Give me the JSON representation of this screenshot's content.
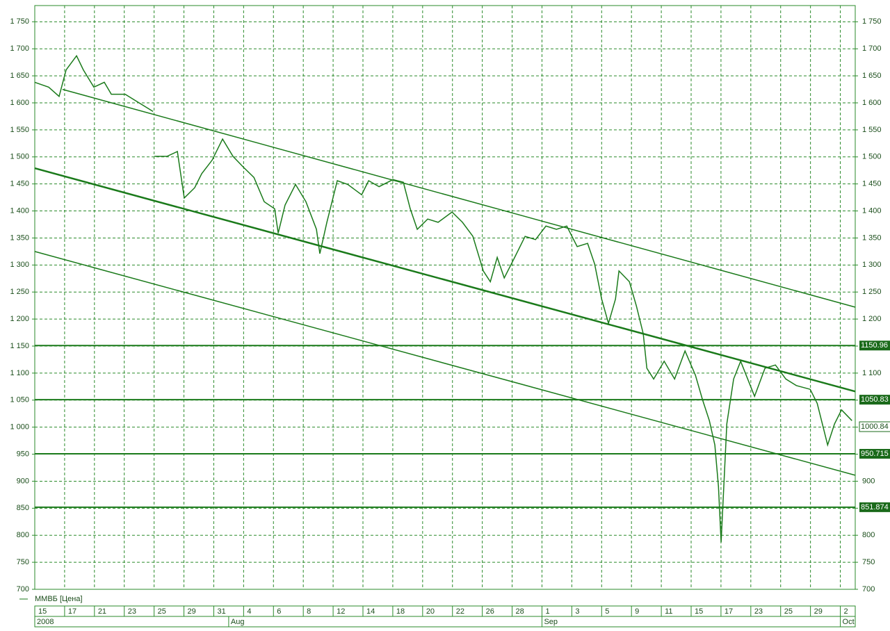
{
  "chart_data": {
    "type": "line",
    "legend": "ММВБ [Цена]",
    "xlim": [
      0,
      55
    ],
    "ylim": [
      700,
      1780
    ],
    "grid": true,
    "yticks": [
      700,
      750,
      800,
      850,
      900,
      950,
      {
        "value": 1000,
        "label": "1 000"
      },
      {
        "value": 1050,
        "label": "1 050"
      },
      {
        "value": 1100,
        "label": "1 100"
      },
      {
        "value": 1150,
        "label": "1 150"
      },
      {
        "value": 1200,
        "label": "1 200"
      },
      {
        "value": 1250,
        "label": "1 250"
      },
      {
        "value": 1300,
        "label": "1 300"
      },
      {
        "value": 1350,
        "label": "1 350"
      },
      {
        "value": 1400,
        "label": "1 400"
      },
      {
        "value": 1450,
        "label": "1 450"
      },
      {
        "value": 1500,
        "label": "1 500"
      },
      {
        "value": 1550,
        "label": "1 550"
      },
      {
        "value": 1600,
        "label": "1 600"
      },
      {
        "value": 1650,
        "label": "1 650"
      },
      {
        "value": 1700,
        "label": "1 700"
      },
      {
        "value": 1750,
        "label": "1 750"
      }
    ],
    "xticks": [
      {
        "value": 0,
        "label": "15"
      },
      {
        "value": 2,
        "label": "17"
      },
      {
        "value": 4,
        "label": "21"
      },
      {
        "value": 6,
        "label": "23"
      },
      {
        "value": 8,
        "label": "25"
      },
      {
        "value": 10,
        "label": "29"
      },
      {
        "value": 12,
        "label": "31"
      },
      {
        "value": 14,
        "label": "4"
      },
      {
        "value": 16,
        "label": "6"
      },
      {
        "value": 18,
        "label": "8"
      },
      {
        "value": 20,
        "label": "12"
      },
      {
        "value": 22,
        "label": "14"
      },
      {
        "value": 24,
        "label": "18"
      },
      {
        "value": 26,
        "label": "20"
      },
      {
        "value": 28,
        "label": "22"
      },
      {
        "value": 30,
        "label": "26"
      },
      {
        "value": 32,
        "label": "28"
      },
      {
        "value": 34,
        "label": "1"
      },
      {
        "value": 36,
        "label": "3"
      },
      {
        "value": 38,
        "label": "5"
      },
      {
        "value": 40,
        "label": "9"
      },
      {
        "value": 42,
        "label": "11"
      },
      {
        "value": 44,
        "label": "15"
      },
      {
        "value": 46,
        "label": "17"
      },
      {
        "value": 48,
        "label": "23"
      },
      {
        "value": 50,
        "label": "25"
      },
      {
        "value": 52,
        "label": "29"
      },
      {
        "value": 54,
        "label": "2"
      }
    ],
    "months": [
      {
        "value": 0,
        "label": "2008"
      },
      {
        "value": 13,
        "label": "Aug"
      },
      {
        "value": 34,
        "label": "Sep"
      },
      {
        "value": 54,
        "label": "Oct"
      }
    ],
    "series": [
      {
        "name": "ММВБ [Цена]",
        "color": "#1a7a1a",
        "x": [
          0,
          0.93,
          1.63,
          2.1,
          2.8,
          3.26,
          3.96,
          4.66,
          5.13,
          6.06,
          6.99,
          7.93,
          7.95,
          8.02,
          8.86,
          9.56,
          10.02,
          10.72,
          11.19,
          11.89,
          12.59,
          13.29,
          13.99,
          14.69,
          15.38,
          16.08,
          16.32,
          16.78,
          17.48,
          18.18,
          18.88,
          19.11,
          19.58,
          20.28,
          20.98,
          21.91,
          22.38,
          23.08,
          24.01,
          24.71,
          25.17,
          25.64,
          26.34,
          27.04,
          27.97,
          28.67,
          29.37,
          30.07,
          30.54,
          31.0,
          31.47,
          32.17,
          32.87,
          33.57,
          34.27,
          34.97,
          35.66,
          36.36,
          37.06,
          37.53,
          38.0,
          38.46,
          38.93,
          39.16,
          39.86,
          40.33,
          40.79,
          41.03,
          41.49,
          42.19,
          42.89,
          43.59,
          44.29,
          44.76,
          45.22,
          45.59,
          45.83,
          46.01,
          46.39,
          46.85,
          47.32,
          48.25,
          48.95,
          49.65,
          50.35,
          51.05,
          51.98,
          52.45,
          53.15,
          53.61,
          54.08,
          54.78
        ],
        "values": [
          1638,
          1629,
          1612,
          1661,
          1687,
          1661,
          1629,
          1638,
          1616,
          1616,
          1600,
          1584,
          null,
          1501,
          1501,
          1510,
          1424,
          1443,
          1469,
          1494,
          1533,
          1501,
          1481,
          1462,
          1417,
          1404,
          1359,
          1411,
          1449,
          1417,
          1366,
          1321,
          1379,
          1456,
          1449,
          1430,
          1456,
          1445,
          1458,
          1453,
          1404,
          1366,
          1385,
          1379,
          1398,
          1379,
          1353,
          1289,
          1269,
          1314,
          1276,
          1314,
          1353,
          1347,
          1372,
          1366,
          1372,
          1334,
          1340,
          1302,
          1237,
          1192,
          1237,
          1289,
          1269,
          1224,
          1173,
          1109,
          1089,
          1122,
          1089,
          1141,
          1096,
          1051,
          1012,
          967,
          890,
          787,
          1006,
          1089,
          1122,
          1057,
          1109,
          1115,
          1089,
          1077,
          1070,
          1044,
          967,
          1006,
          1032,
          1012
        ]
      },
      {
        "color": "#1a7a1a",
        "x": [
          1.86,
          55
        ],
        "values": [
          1625,
          1222
        ]
      },
      {
        "color": "#1a7a1a",
        "x": [
          0,
          55
        ],
        "values": [
          1479,
          1066
        ]
      },
      {
        "color": "#1a7a1a",
        "x": [
          0,
          55
        ],
        "values": [
          1325,
          911
        ]
      }
    ],
    "levels": [
      {
        "value": 1150.96,
        "label": "1150.96"
      },
      {
        "value": 1050.83,
        "label": "1050.83"
      },
      {
        "value": 950.715,
        "label": "950.715"
      },
      {
        "value": 851.874,
        "label": "851.874"
      }
    ],
    "last_price": {
      "value": 1000.84,
      "label": "1000.84"
    }
  }
}
